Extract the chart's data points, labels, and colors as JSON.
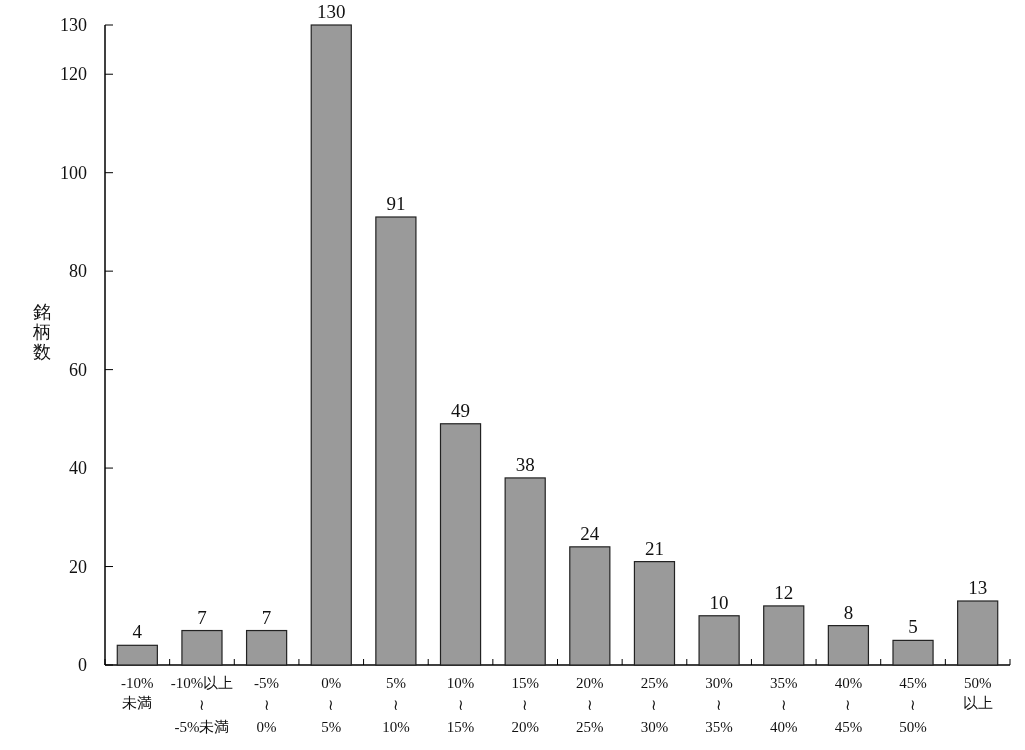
{
  "chart_data": {
    "type": "bar",
    "ylabel": "銘柄数",
    "categories": [
      "-10%\n未満",
      "-10%以上\n≀\n-5%未満",
      "-5%\n≀\n0%",
      "0%\n≀\n5%",
      "5%\n≀\n10%",
      "10%\n≀\n15%",
      "15%\n≀\n20%",
      "20%\n≀\n25%",
      "25%\n≀\n30%",
      "30%\n≀\n35%",
      "35%\n≀\n40%",
      "40%\n≀\n45%",
      "45%\n≀\n50%",
      "50%\n以上"
    ],
    "values": [
      4,
      7,
      7,
      130,
      91,
      49,
      38,
      24,
      21,
      10,
      12,
      8,
      5,
      13
    ],
    "color": "#9a9a9a",
    "data_labels": true,
    "ylim": [
      0,
      130
    ],
    "yticks": [
      0,
      20,
      40,
      60,
      80,
      100,
      120,
      130
    ],
    "grid": false
  }
}
